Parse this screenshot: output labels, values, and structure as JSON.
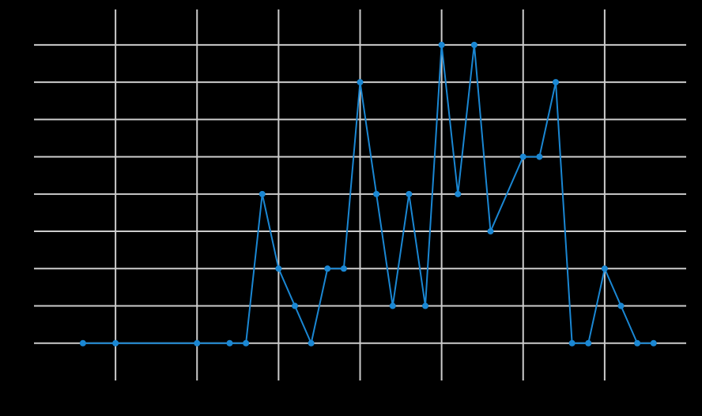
{
  "chart_data": {
    "type": "line",
    "x": [
      3,
      5,
      10,
      12,
      13,
      14,
      15,
      16,
      17,
      18,
      19,
      20,
      21,
      22,
      23,
      24,
      25,
      26,
      27,
      28,
      30,
      31,
      32,
      33,
      34,
      35,
      36,
      37,
      38
    ],
    "values": [
      0,
      0,
      0,
      0,
      0,
      4,
      2,
      1,
      0,
      2,
      2,
      7,
      4,
      1,
      4,
      1,
      8,
      4,
      8,
      3,
      5,
      5,
      7,
      0,
      0,
      2,
      1,
      0,
      0
    ],
    "color": "#1a87d3",
    "xlim": [
      0,
      40
    ],
    "xticks": [
      5,
      10,
      15,
      20,
      25,
      30,
      35
    ],
    "ylim": [
      -1,
      8.95
    ],
    "yticks": [
      0,
      1,
      2,
      3,
      4,
      5,
      6,
      7,
      8
    ],
    "grid": true
  }
}
